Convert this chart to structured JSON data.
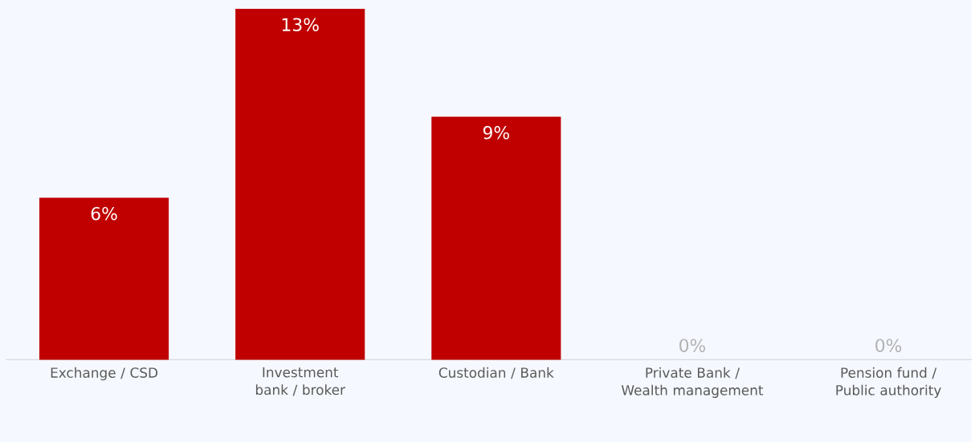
{
  "chart_data": {
    "type": "bar",
    "categories": [
      "Exchange / CSD",
      "Investment bank / broker",
      "Custodian / Bank",
      "Private Bank / Wealth management",
      "Pension fund / Public authority"
    ],
    "values": [
      6,
      13,
      9,
      0,
      0
    ],
    "value_labels": [
      "6%",
      "13%",
      "9%",
      "0%",
      "0%"
    ],
    "color": "#c00000"
  }
}
